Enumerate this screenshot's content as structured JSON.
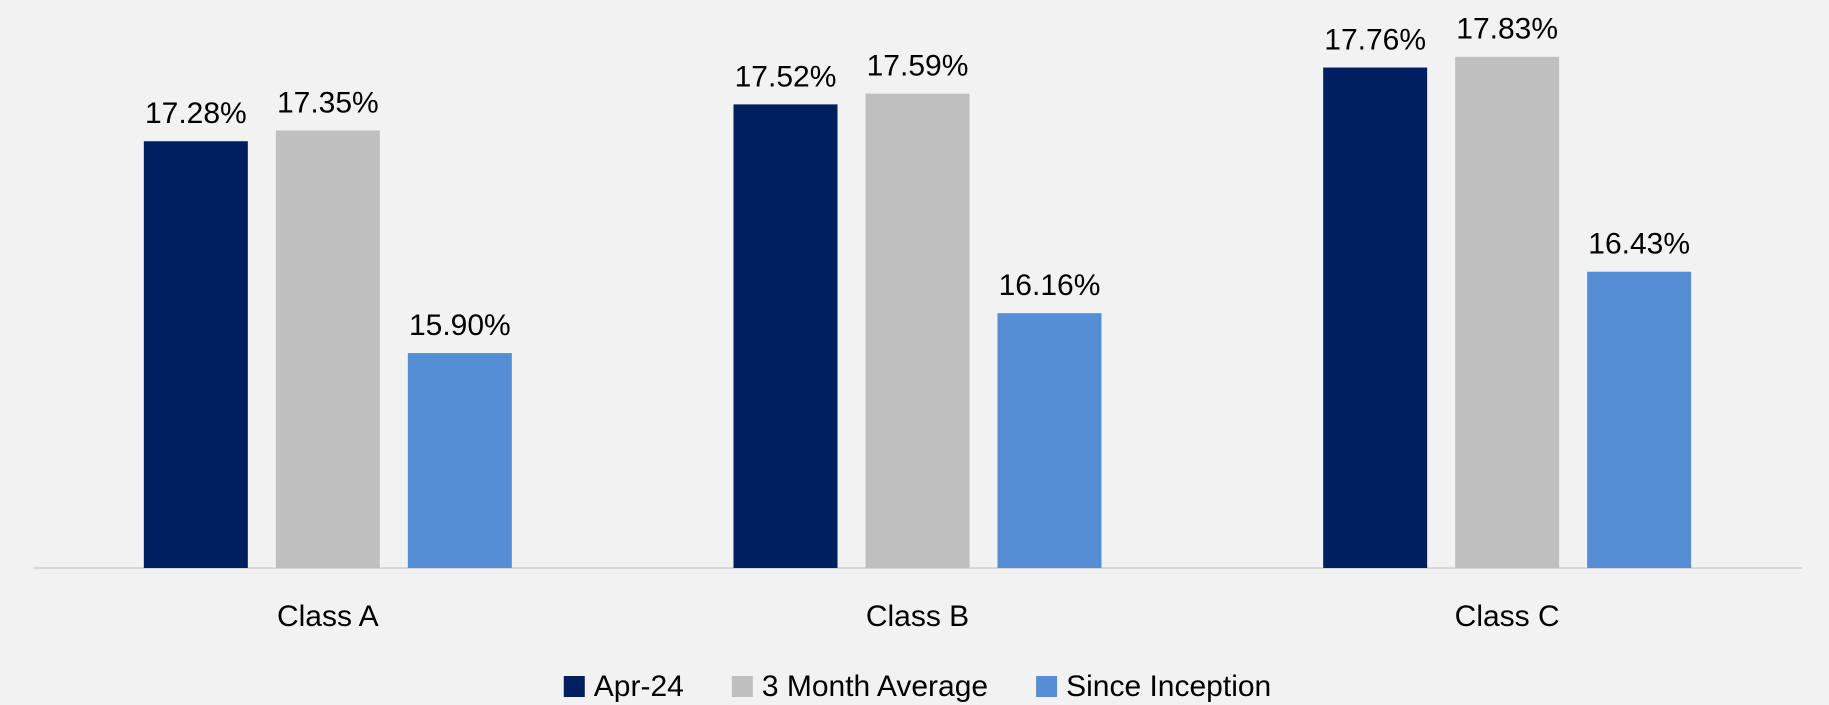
{
  "chart_data": {
    "type": "bar",
    "categories": [
      "Class A",
      "Class B",
      "Class C"
    ],
    "series": [
      {
        "name": "Apr-24",
        "color": "#001f5f",
        "values": [
          17.28,
          17.52,
          17.76
        ],
        "value_labels": [
          "17.28%",
          "17.52%",
          "17.76%"
        ]
      },
      {
        "name": "3 Month Average",
        "color": "#bfbfbf",
        "values": [
          17.35,
          17.59,
          17.83
        ],
        "value_labels": [
          "17.35%",
          "17.59%",
          "17.83%"
        ]
      },
      {
        "name": "Since Inception",
        "color": "#558ed5",
        "values": [
          15.9,
          16.16,
          16.43
        ],
        "value_labels": [
          "15.90%",
          "16.16%",
          "16.43%"
        ]
      }
    ],
    "ylim": [
      14.5,
      18.2
    ],
    "legend": "bottom"
  }
}
